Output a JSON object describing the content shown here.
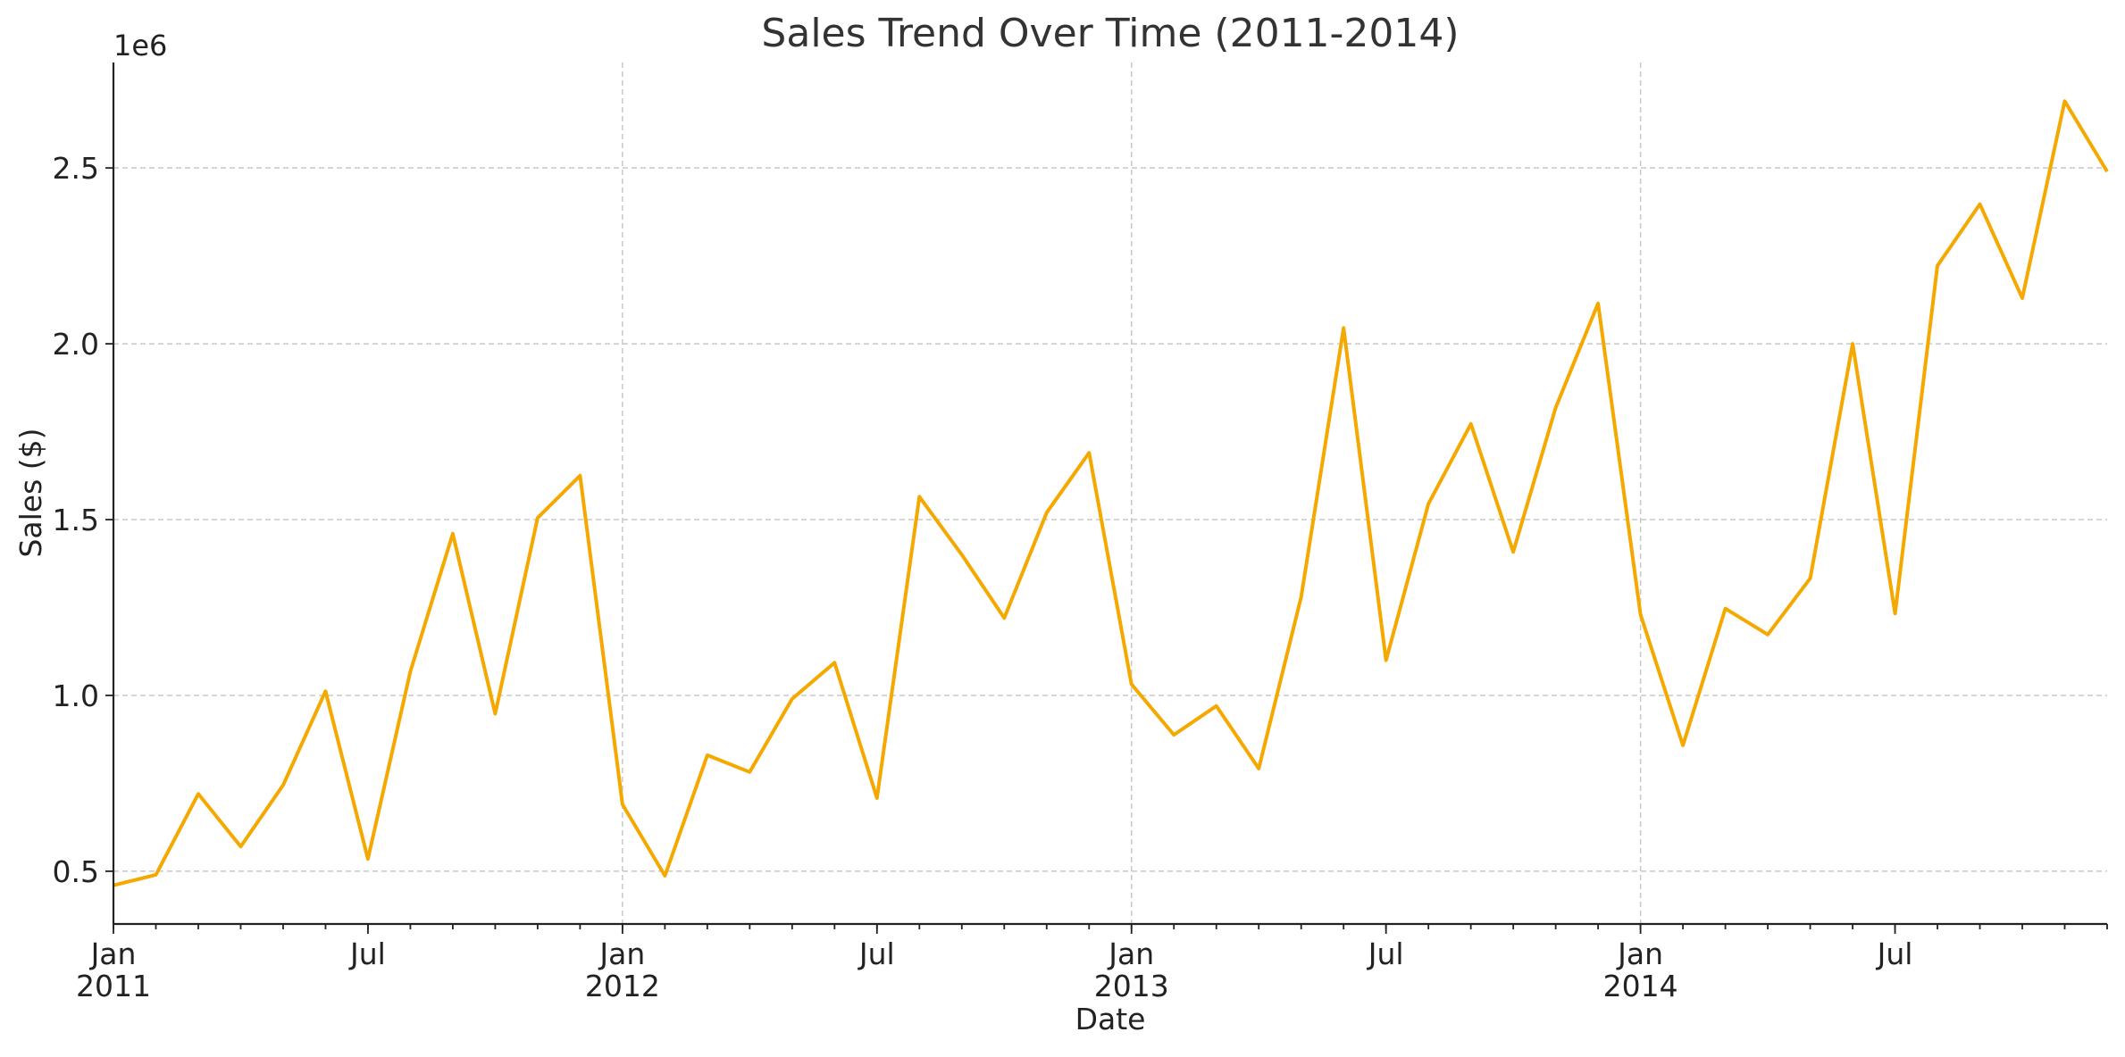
{
  "chart_data": {
    "type": "line",
    "title": "Sales Trend Over Time (2011-2014)",
    "xlabel": "Date",
    "ylabel": "Sales ($)",
    "y_offset_text": "1e6",
    "xlim": [
      "2011-01",
      "2014-12"
    ],
    "ylim": [
      350000,
      2800000
    ],
    "grid": true,
    "line_color": "#F5A800",
    "y_ticks": [
      {
        "value": 500000,
        "label": "0.5"
      },
      {
        "value": 1000000,
        "label": "1.0"
      },
      {
        "value": 1500000,
        "label": "1.5"
      },
      {
        "value": 2000000,
        "label": "2.0"
      },
      {
        "value": 2500000,
        "label": "2.5"
      }
    ],
    "x_major_ticks": [
      {
        "date": "2011-01",
        "label": "Jan",
        "sublabel": "2011"
      },
      {
        "date": "2011-07",
        "label": "Jul",
        "sublabel": ""
      },
      {
        "date": "2012-01",
        "label": "Jan",
        "sublabel": "2012"
      },
      {
        "date": "2012-07",
        "label": "Jul",
        "sublabel": ""
      },
      {
        "date": "2013-01",
        "label": "Jan",
        "sublabel": "2013"
      },
      {
        "date": "2013-07",
        "label": "Jul",
        "sublabel": ""
      },
      {
        "date": "2014-01",
        "label": "Jan",
        "sublabel": "2014"
      },
      {
        "date": "2014-07",
        "label": "Jul",
        "sublabel": ""
      }
    ],
    "x_grid_dates": [
      "2012-01",
      "2013-01",
      "2014-01"
    ],
    "series": [
      {
        "x": [
          "2011-01",
          "2011-02",
          "2011-03",
          "2011-04",
          "2011-05",
          "2011-06",
          "2011-07",
          "2011-08",
          "2011-09",
          "2011-10",
          "2011-11",
          "2011-12",
          "2012-01",
          "2012-02",
          "2012-03",
          "2012-04",
          "2012-05",
          "2012-06",
          "2012-07",
          "2012-08",
          "2012-09",
          "2012-10",
          "2012-11",
          "2012-12",
          "2013-01",
          "2013-02",
          "2013-03",
          "2013-04",
          "2013-05",
          "2013-06",
          "2013-07",
          "2013-08",
          "2013-09",
          "2013-10",
          "2013-11",
          "2013-12",
          "2014-01",
          "2014-02",
          "2014-03",
          "2014-04",
          "2014-05",
          "2014-06",
          "2014-07",
          "2014-08",
          "2014-09",
          "2014-10",
          "2014-11",
          "2014-12"
        ],
        "values": [
          460000,
          490000,
          720000,
          570000,
          745000,
          1012000,
          535000,
          1068000,
          1460000,
          948000,
          1505000,
          1625000,
          690000,
          487000,
          830000,
          782000,
          990000,
          1093000,
          708000,
          1565000,
          1400000,
          1220000,
          1520000,
          1690000,
          1032000,
          888000,
          970000,
          792000,
          1280000,
          2045000,
          1100000,
          1545000,
          1772000,
          1408000,
          1818000,
          2115000,
          1230000,
          858000,
          1247000,
          1173000,
          1333000,
          2000000,
          1233000,
          2222000,
          2397000,
          2130000,
          2690000,
          2490000
        ]
      }
    ]
  }
}
